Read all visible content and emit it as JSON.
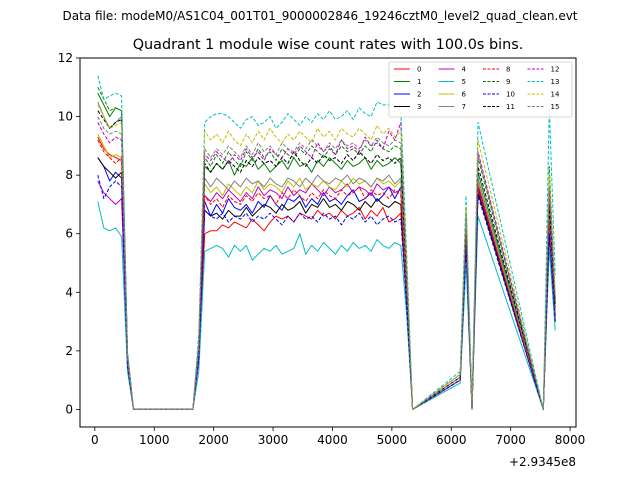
{
  "chart_data": {
    "type": "line",
    "supertitle": "Data file: modeM0/AS1C04_001T01_9000002846_19246cztM0_level2_quad_clean.evt",
    "title": "Quadrant 1 module wise count rates with 100.0s bins.",
    "offset_label": "+2.9345e8",
    "xlim": [
      -250,
      8100
    ],
    "ylim": [
      -0.6,
      12
    ],
    "xticks": [
      0,
      1000,
      2000,
      3000,
      4000,
      5000,
      6000,
      7000,
      8000
    ],
    "yticks": [
      0,
      2,
      4,
      6,
      8,
      10,
      12
    ],
    "x": [
      50,
      150,
      250,
      350,
      450,
      550,
      650,
      1650,
      1750,
      1850,
      1950,
      2050,
      2150,
      2250,
      2350,
      2450,
      2550,
      2650,
      2750,
      2850,
      2950,
      3050,
      3150,
      3250,
      3350,
      3450,
      3550,
      3650,
      3750,
      3850,
      3950,
      4050,
      4150,
      4250,
      4350,
      4450,
      4550,
      4650,
      4750,
      4850,
      4950,
      5050,
      5150,
      5250,
      5350,
      6150,
      6250,
      6350,
      6450,
      7550,
      7650,
      7750
    ],
    "series": [
      {
        "name": "0",
        "color": "#ff0000",
        "dash": "solid",
        "values": [
          9.3,
          8.9,
          8.7,
          8.6,
          8.5,
          1.5,
          0,
          0,
          1.8,
          6.0,
          6.1,
          6.1,
          6.3,
          6.2,
          6.4,
          6.3,
          6.2,
          6.5,
          6.3,
          6.1,
          6.4,
          6.6,
          6.5,
          6.6,
          6.4,
          6.7,
          6.6,
          6.5,
          6.8,
          6.6,
          6.7,
          6.5,
          6.8,
          6.6,
          6.7,
          6.9,
          6.5,
          6.8,
          6.6,
          6.9,
          6.4,
          6.5,
          6.7,
          3.6,
          0,
          1.0,
          5.8,
          0,
          7.5,
          0,
          6.2,
          3.0
        ]
      },
      {
        "name": "1",
        "color": "#008000",
        "dash": "solid",
        "values": [
          10.8,
          10.4,
          10.0,
          10.3,
          10.2,
          1.9,
          0,
          0,
          2.3,
          8.3,
          8.1,
          8.4,
          8.2,
          8.5,
          8.0,
          8.4,
          8.3,
          8.6,
          8.2,
          8.4,
          8.1,
          8.3,
          8.5,
          8.2,
          8.6,
          8.3,
          8.4,
          8.1,
          8.5,
          8.3,
          8.6,
          8.4,
          8.2,
          8.5,
          8.3,
          8.4,
          8.6,
          8.2,
          8.5,
          8.3,
          8.4,
          8.6,
          8.4,
          4.3,
          0,
          1.1,
          6.2,
          0,
          8.1,
          0,
          7.3,
          3.6
        ]
      },
      {
        "name": "2",
        "color": "#0000ff",
        "dash": "solid",
        "values": [
          8.6,
          8.3,
          7.8,
          8.1,
          7.9,
          1.6,
          0,
          0,
          1.9,
          7.1,
          6.6,
          7.0,
          6.7,
          7.2,
          6.9,
          6.8,
          7.0,
          6.7,
          7.1,
          6.9,
          7.3,
          7.0,
          6.8,
          7.2,
          7.1,
          7.3,
          6.9,
          7.2,
          7.0,
          7.4,
          7.1,
          7.2,
          7.0,
          7.3,
          7.5,
          7.1,
          7.2,
          7.4,
          7.1,
          7.3,
          7.6,
          7.2,
          7.6,
          3.8,
          0,
          1.0,
          5.9,
          0,
          7.6,
          0,
          6.3,
          3.2
        ]
      },
      {
        "name": "3",
        "color": "#000000",
        "dash": "solid",
        "values": [
          8.6,
          8.3,
          8.1,
          7.9,
          8.1,
          1.6,
          0,
          0,
          1.9,
          6.8,
          6.6,
          6.7,
          6.5,
          6.8,
          6.6,
          6.6,
          6.9,
          6.6,
          6.8,
          7.0,
          6.9,
          6.7,
          7.0,
          6.8,
          6.9,
          7.1,
          6.7,
          7.0,
          6.9,
          7.2,
          6.9,
          7.0,
          6.8,
          7.1,
          7.0,
          6.8,
          7.1,
          6.9,
          7.2,
          7.0,
          6.9,
          7.1,
          7.0,
          3.7,
          0,
          1.0,
          5.7,
          0,
          7.4,
          0,
          6.1,
          3.0
        ]
      },
      {
        "name": "4",
        "color": "#bf00bf",
        "dash": "solid",
        "values": [
          7.8,
          7.4,
          7.2,
          7.0,
          7.2,
          1.5,
          0,
          0,
          1.7,
          7.3,
          7.1,
          7.4,
          7.2,
          7.5,
          7.3,
          7.1,
          7.4,
          7.2,
          7.6,
          7.3,
          7.5,
          7.4,
          7.2,
          7.6,
          7.3,
          7.5,
          7.4,
          7.7,
          7.5,
          7.3,
          7.6,
          7.4,
          7.5,
          7.7,
          7.4,
          7.6,
          7.5,
          7.3,
          7.7,
          7.5,
          7.6,
          7.4,
          7.5,
          3.9,
          0,
          1.0,
          5.9,
          0,
          7.7,
          0,
          6.4,
          3.2
        ]
      },
      {
        "name": "5",
        "color": "#00bfbf",
        "dash": "solid",
        "values": [
          7.1,
          6.2,
          6.1,
          6.2,
          5.9,
          1.3,
          0,
          0,
          1.3,
          5.4,
          5.5,
          5.6,
          5.5,
          5.2,
          5.6,
          5.4,
          5.6,
          5.1,
          5.3,
          5.5,
          5.4,
          5.6,
          5.3,
          5.4,
          5.5,
          6.0,
          5.3,
          5.6,
          5.4,
          5.7,
          5.5,
          5.3,
          5.6,
          5.4,
          5.7,
          5.5,
          5.6,
          5.4,
          5.8,
          5.6,
          5.5,
          5.7,
          5.6,
          3.2,
          0,
          0.9,
          5.0,
          0,
          6.6,
          0,
          5.5,
          2.7
        ]
      },
      {
        "name": "6",
        "color": "#bfbf00",
        "dash": "solid",
        "values": [
          9.4,
          9.0,
          8.6,
          8.7,
          8.6,
          1.7,
          0,
          0,
          2.0,
          7.7,
          7.4,
          7.6,
          7.3,
          7.7,
          7.5,
          7.3,
          7.6,
          7.4,
          7.8,
          7.5,
          7.7,
          7.6,
          7.4,
          7.8,
          7.6,
          7.9,
          7.5,
          7.7,
          7.6,
          7.8,
          7.6,
          7.5,
          7.8,
          7.6,
          7.9,
          7.7,
          7.8,
          7.6,
          7.9,
          7.7,
          7.8,
          7.6,
          7.8,
          4.0,
          0,
          1.0,
          6.0,
          0,
          7.8,
          0,
          6.5,
          3.3
        ]
      },
      {
        "name": "7",
        "color": "#808080",
        "dash": "solid",
        "values": [
          10.5,
          10.0,
          9.6,
          9.8,
          10.0,
          1.8,
          0,
          0,
          2.1,
          7.9,
          7.6,
          7.9,
          7.7,
          7.5,
          7.8,
          7.6,
          7.9,
          7.7,
          7.8,
          7.6,
          7.9,
          7.7,
          7.6,
          7.9,
          7.8,
          7.6,
          7.9,
          7.7,
          8.0,
          7.8,
          7.7,
          7.9,
          7.8,
          8.0,
          7.7,
          7.9,
          7.8,
          7.6,
          7.9,
          7.8,
          8.0,
          7.7,
          7.9,
          4.1,
          0,
          1.0,
          6.1,
          0,
          7.9,
          0,
          6.6,
          3.3
        ]
      },
      {
        "name": "8",
        "color": "#ff0000",
        "dash": "dashed",
        "values": [
          9.2,
          8.8,
          8.6,
          8.4,
          8.6,
          1.6,
          0,
          0,
          1.9,
          7.3,
          7.0,
          7.2,
          6.9,
          7.3,
          7.1,
          7.0,
          7.3,
          7.1,
          7.4,
          7.2,
          7.3,
          7.0,
          7.4,
          7.2,
          7.5,
          7.3,
          7.1,
          7.4,
          7.2,
          7.5,
          7.3,
          7.2,
          7.5,
          7.3,
          7.4,
          7.6,
          7.2,
          7.5,
          7.3,
          7.4,
          7.2,
          7.5,
          7.3,
          3.9,
          0,
          1.0,
          5.9,
          0,
          7.6,
          0,
          6.3,
          3.2
        ]
      },
      {
        "name": "9",
        "color": "#008000",
        "dash": "dashed",
        "values": [
          11.0,
          10.6,
          10.2,
          10.3,
          10.2,
          1.9,
          0,
          0,
          2.3,
          8.6,
          8.3,
          8.7,
          8.4,
          8.8,
          8.5,
          8.3,
          8.8,
          8.5,
          8.9,
          8.6,
          8.8,
          8.5,
          8.9,
          8.7,
          8.6,
          8.9,
          8.7,
          9.0,
          8.8,
          8.6,
          8.9,
          8.7,
          9.0,
          8.8,
          8.9,
          8.7,
          9.0,
          8.8,
          9.2,
          8.9,
          8.8,
          9.0,
          8.9,
          4.5,
          0,
          1.2,
          6.5,
          0,
          8.6,
          0,
          8.3,
          3.7
        ]
      },
      {
        "name": "10",
        "color": "#0000ff",
        "dash": "dashed",
        "values": [
          8.0,
          7.2,
          7.6,
          7.8,
          7.6,
          1.5,
          0,
          0,
          1.7,
          6.8,
          6.6,
          6.5,
          6.7,
          6.4,
          6.6,
          6.5,
          6.7,
          6.4,
          6.6,
          6.5,
          6.7,
          6.5,
          6.3,
          6.6,
          6.4,
          6.7,
          6.5,
          6.6,
          6.4,
          6.7,
          6.5,
          6.6,
          6.3,
          6.6,
          6.5,
          6.7,
          6.4,
          6.6,
          6.3,
          6.5,
          6.6,
          6.4,
          6.5,
          3.5,
          0,
          1.0,
          5.6,
          0,
          7.3,
          0,
          6.0,
          3.0
        ]
      },
      {
        "name": "11",
        "color": "#000000",
        "dash": "dashed",
        "values": [
          10.2,
          9.9,
          9.6,
          9.8,
          9.9,
          1.8,
          0,
          0,
          2.2,
          8.4,
          8.1,
          8.4,
          8.2,
          8.5,
          8.3,
          8.1,
          8.5,
          8.3,
          8.6,
          8.4,
          8.5,
          8.3,
          8.6,
          8.4,
          8.8,
          8.5,
          8.3,
          8.6,
          8.4,
          8.7,
          8.5,
          8.6,
          8.4,
          8.7,
          8.5,
          8.8,
          8.6,
          8.4,
          8.7,
          8.5,
          8.6,
          8.4,
          8.6,
          4.4,
          0,
          1.1,
          6.4,
          0,
          8.3,
          0,
          7.0,
          3.5
        ]
      },
      {
        "name": "12",
        "color": "#bf00bf",
        "dash": "dashed",
        "values": [
          9.8,
          9.4,
          9.1,
          9.3,
          9.2,
          1.8,
          0,
          0,
          2.1,
          8.7,
          8.5,
          8.8,
          8.6,
          8.4,
          8.7,
          8.5,
          8.9,
          8.6,
          8.8,
          8.5,
          8.9,
          8.7,
          8.6,
          8.9,
          8.7,
          9.0,
          8.8,
          8.6,
          9.1,
          8.8,
          9.0,
          8.7,
          9.2,
          8.9,
          9.0,
          8.8,
          9.3,
          9.0,
          9.1,
          8.9,
          9.5,
          9.2,
          9.8,
          4.8,
          0,
          1.2,
          6.7,
          0,
          8.8,
          0,
          7.5,
          3.8
        ]
      },
      {
        "name": "13",
        "color": "#00bfbf",
        "dash": "dashed",
        "values": [
          11.4,
          10.6,
          10.7,
          10.8,
          10.7,
          2.0,
          0,
          0,
          2.6,
          9.8,
          10.0,
          10.1,
          10.1,
          10.0,
          9.8,
          9.6,
          9.9,
          10.0,
          9.7,
          9.8,
          10.0,
          9.6,
          9.8,
          10.1,
          9.9,
          9.7,
          10.0,
          9.8,
          10.1,
          9.9,
          10.2,
          9.9,
          10.0,
          10.2,
          9.9,
          10.3,
          10.1,
          10.0,
          10.5,
          10.4,
          10.4,
          10.3,
          10.2,
          5.3,
          0,
          1.3,
          7.3,
          0,
          9.8,
          0,
          10.3,
          4.6
        ]
      },
      {
        "name": "14",
        "color": "#bfbf00",
        "dash": "dashed",
        "values": [
          10.4,
          10.0,
          9.6,
          9.7,
          9.8,
          1.8,
          0,
          0,
          2.3,
          9.5,
          9.2,
          9.4,
          9.1,
          9.5,
          9.2,
          9.0,
          9.4,
          9.1,
          9.5,
          9.2,
          9.6,
          9.3,
          9.1,
          9.4,
          9.2,
          9.5,
          9.3,
          9.1,
          9.6,
          9.3,
          9.5,
          9.2,
          9.6,
          9.4,
          9.3,
          9.6,
          9.4,
          9.2,
          9.7,
          9.4,
          9.6,
          9.3,
          9.5,
          4.9,
          0,
          1.2,
          6.9,
          0,
          9.2,
          0,
          8.1,
          4.0
        ]
      },
      {
        "name": "15",
        "color": "#808080",
        "dash": "dashed",
        "values": [
          10.0,
          9.6,
          9.4,
          9.5,
          9.4,
          1.8,
          0,
          0,
          2.2,
          8.9,
          8.6,
          8.9,
          8.7,
          9.0,
          8.8,
          8.6,
          9.0,
          8.7,
          9.1,
          8.8,
          9.0,
          8.7,
          9.1,
          8.9,
          8.8,
          9.1,
          8.9,
          9.2,
          9.0,
          8.8,
          9.1,
          8.9,
          9.2,
          9.0,
          9.1,
          8.9,
          9.2,
          9.0,
          9.3,
          9.1,
          9.0,
          9.2,
          9.1,
          4.6,
          0,
          1.1,
          6.6,
          0,
          8.7,
          0,
          7.6,
          3.8
        ]
      }
    ]
  }
}
